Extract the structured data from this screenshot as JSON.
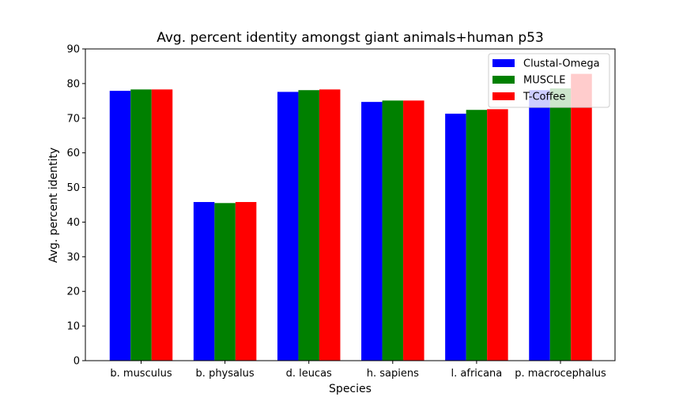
{
  "chart_data": {
    "type": "bar",
    "title": "Avg. percent identity amongst giant animals+human p53",
    "xlabel": "Species",
    "ylabel": "Avg. percent identity",
    "ylim": [
      0,
      90
    ],
    "yticks": [
      0,
      10,
      20,
      30,
      40,
      50,
      60,
      70,
      80,
      90
    ],
    "categories": [
      "b. musculus",
      "b. physalus",
      "d. leucas",
      "h. sapiens",
      "l. africana",
      "p. macrocephalus"
    ],
    "series": [
      {
        "name": "Clustal-Omega",
        "color": "#0000ff",
        "values": [
          77.9,
          45.8,
          77.6,
          74.7,
          71.3,
          78.1
        ]
      },
      {
        "name": "MUSCLE",
        "color": "#008000",
        "values": [
          78.3,
          45.5,
          78.1,
          75.1,
          72.4,
          78.6
        ]
      },
      {
        "name": "T-Coffee",
        "color": "#ff0000",
        "values": [
          78.3,
          45.8,
          78.3,
          75.1,
          72.6,
          82.8
        ]
      }
    ],
    "legend_position": "top-right",
    "grid": false
  }
}
